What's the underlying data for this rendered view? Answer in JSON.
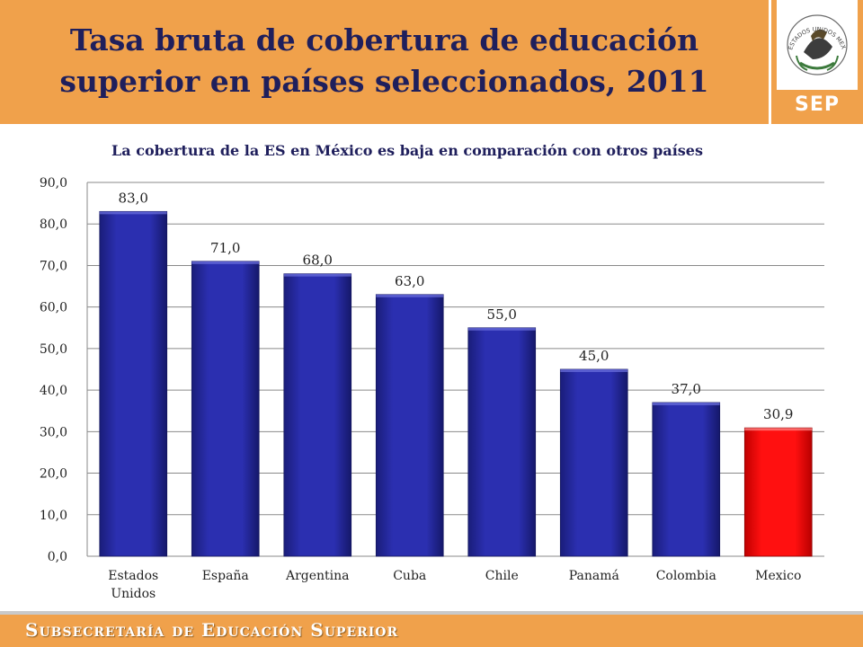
{
  "header": {
    "title": "Tasa bruta de cobertura de educación superior en países seleccionados, 2011",
    "logo_text": "ESTADOS UNIDOS MEXICANOS",
    "logo_label": "SEP"
  },
  "subtitle": "La cobertura de la ES en México es baja en comparación con otros países",
  "footer": {
    "text": "Subsecretaría de Educación Superior"
  },
  "colors": {
    "bar": "#2b2fb0",
    "highlight": "#ff1010",
    "accent": "#f0a14b",
    "text": "#1f1f5c"
  },
  "chart_data": {
    "type": "bar",
    "categories": [
      "Estados Unidos",
      "España",
      "Argentina",
      "Cuba",
      "Chile",
      "Panamá",
      "Colombia",
      "Mexico"
    ],
    "values": [
      83.0,
      71.0,
      68.0,
      63.0,
      55.0,
      45.0,
      37.0,
      30.9
    ],
    "data_labels": [
      "83,0",
      "71,0",
      "68,0",
      "63,0",
      "55,0",
      "45,0",
      "37,0",
      "30,9"
    ],
    "highlight": "Mexico",
    "ylim": [
      0,
      90
    ],
    "yticks": [
      "0,0",
      "10,0",
      "20,0",
      "30,0",
      "40,0",
      "50,0",
      "60,0",
      "70,0",
      "80,0",
      "90,0"
    ],
    "grid": true
  }
}
